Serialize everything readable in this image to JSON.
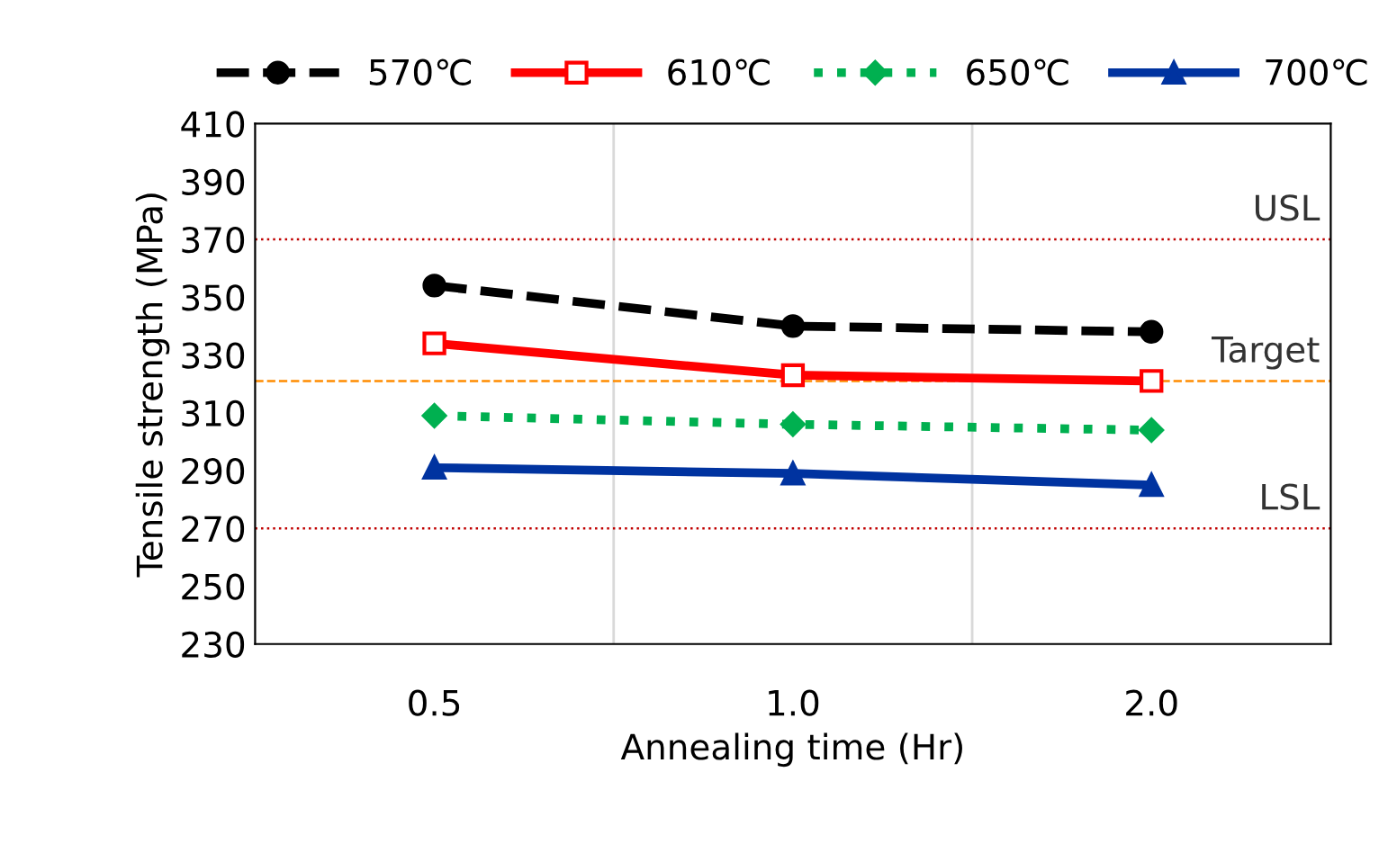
{
  "chart_data": {
    "type": "line",
    "xlabel": "Annealing time (Hr)",
    "ylabel": "Tensile strength (MPa)",
    "categories": [
      "0.5",
      "1.0",
      "2.0"
    ],
    "series": [
      {
        "name": "570℃",
        "color": "#000000",
        "values": [
          354,
          340,
          338
        ],
        "marker": "circle",
        "line_style": "dashed"
      },
      {
        "name": "610℃",
        "color": "#ff0000",
        "values": [
          334,
          323,
          321
        ],
        "marker": "square",
        "line_style": "solid"
      },
      {
        "name": "650℃",
        "color": "#00b050",
        "values": [
          309,
          306,
          304
        ],
        "marker": "diamond",
        "line_style": "dotted"
      },
      {
        "name": "700℃",
        "color": "#0033a0",
        "values": [
          291,
          289,
          285
        ],
        "marker": "triangle",
        "line_style": "solid"
      }
    ],
    "ylim": [
      230,
      410
    ],
    "yticks": [
      230,
      250,
      270,
      290,
      310,
      330,
      350,
      370,
      390,
      410
    ],
    "ref_lines": [
      {
        "axis": "y",
        "value": 370,
        "label": "USL",
        "color": "#c00000",
        "line_style": "dotted"
      },
      {
        "axis": "y",
        "value": 321,
        "label": "Target",
        "color": "#ff8c00",
        "line_style": "dashed"
      },
      {
        "axis": "y",
        "value": 270,
        "label": "LSL",
        "color": "#c00000",
        "line_style": "dotted"
      }
    ],
    "grid": "x",
    "legend": "top"
  }
}
